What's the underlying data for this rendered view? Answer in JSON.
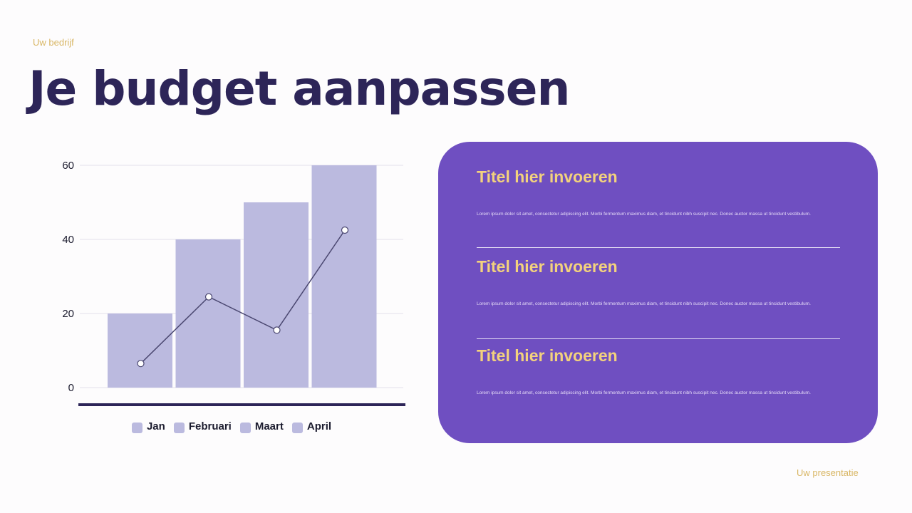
{
  "header": {
    "company": "Uw bedrijf",
    "title": "Je budget aanpassen"
  },
  "chart_data": {
    "type": "bar",
    "title": "",
    "xlabel": "",
    "ylabel": "",
    "categories": [
      "Jan",
      "Februari",
      "Maart",
      "April"
    ],
    "series": [
      {
        "name": "Bars",
        "type": "bar",
        "values": [
          20,
          40,
          50,
          60
        ],
        "color": "#bbbadf"
      },
      {
        "name": "Line",
        "type": "line",
        "values": [
          6.5,
          24.5,
          15.5,
          42.5
        ],
        "color": "#4a4770"
      }
    ],
    "yticks": [
      0,
      20,
      40,
      60
    ],
    "ylim": [
      0,
      60
    ],
    "grid": true,
    "legend_position": "bottom",
    "legend": [
      "Jan",
      "Februari",
      "Maart",
      "April"
    ]
  },
  "panel": {
    "sections": [
      {
        "title": "Titel hier invoeren",
        "text": "Lorem ipsum dolor sit amet, consectetur adipiscing elit. Morbi fermentum maximus diam, et tincidunt nibh suscipit nec. Donec auctor massa ut tincidunt vestibulum."
      },
      {
        "title": "Titel hier invoeren",
        "text": "Lorem ipsum dolor sit amet, consectetur adipiscing elit. Morbi fermentum maximus diam, et tincidunt nibh suscipit nec. Donec auctor massa ut tincidunt vestibulum."
      },
      {
        "title": "Titel hier invoeren",
        "text": "Lorem ipsum dolor sit amet, consectetur adipiscing elit. Morbi fermentum maximus diam, et tincidunt nibh suscipit nec. Donec auctor massa ut tincidunt vestibulum."
      }
    ]
  },
  "footer": {
    "presentation": "Uw presentatie"
  },
  "colors": {
    "title": "#2d2558",
    "accent_gold": "#d9b766",
    "panel": "#6f4fc1",
    "panel_title": "#f3d27d",
    "bar": "#bbbadf"
  }
}
